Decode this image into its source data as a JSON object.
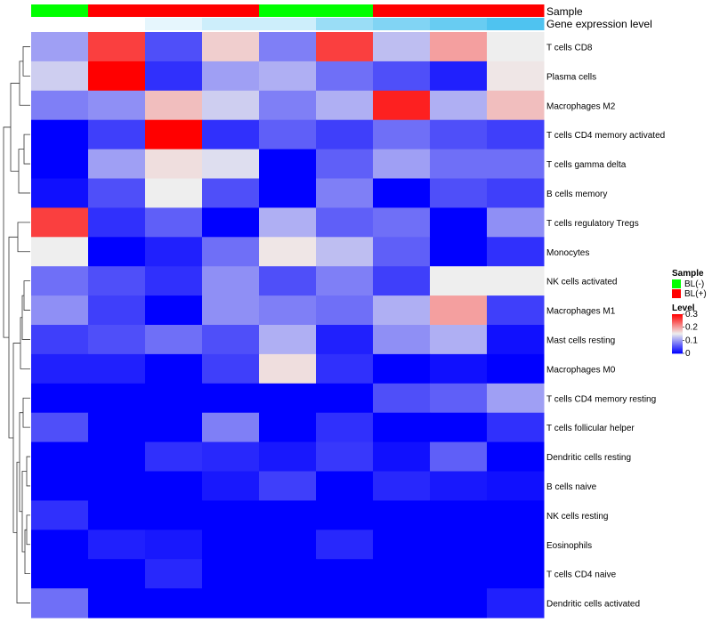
{
  "chart_data": {
    "type": "heatmap",
    "title": "",
    "annotation_labels": [
      "Sample",
      "Gene expression level"
    ],
    "columns": 9,
    "sample_annotation": [
      "BL(-)",
      "BL(+)",
      "BL(+)",
      "BL(+)",
      "BL(-)",
      "BL(-)",
      "BL(+)",
      "BL(+)",
      "BL(+)"
    ],
    "expression_annotation": [
      0.0,
      0.0,
      0.01,
      0.02,
      0.02,
      0.04,
      0.05,
      0.06,
      0.07
    ],
    "rows": [
      "T cells CD8",
      "Plasma cells",
      "Macrophages M2",
      "T cells CD4 memory activated",
      "T cells gamma delta",
      "B cells memory",
      "T cells regulatory  Tregs",
      "Monocytes",
      "NK cells activated",
      "Macrophages M1",
      "Mast cells resting",
      "Macrophages M0",
      "T cells CD4 memory resting",
      "T cells follicular helper",
      "Dendritic cells resting",
      "B cells naive",
      "NK cells resting",
      "Eosinophils",
      "T cells CD4 naive",
      "Dendritic cells activated"
    ],
    "values": [
      [
        0.1,
        0.26,
        0.05,
        0.17,
        0.08,
        0.26,
        0.12,
        0.2,
        0.15
      ],
      [
        0.13,
        0.3,
        0.03,
        0.1,
        0.11,
        0.07,
        0.05,
        0.02,
        0.155
      ],
      [
        0.08,
        0.09,
        0.18,
        0.13,
        0.08,
        0.11,
        0.28,
        0.11,
        0.18
      ],
      [
        0.0,
        0.04,
        0.3,
        0.03,
        0.06,
        0.04,
        0.07,
        0.05,
        0.04
      ],
      [
        0.0,
        0.1,
        0.16,
        0.14,
        0.0,
        0.06,
        0.1,
        0.07,
        0.07
      ],
      [
        0.01,
        0.05,
        0.15,
        0.05,
        0.0,
        0.08,
        0.0,
        0.05,
        0.04
      ],
      [
        0.26,
        0.03,
        0.06,
        0.0,
        0.11,
        0.06,
        0.07,
        0.0,
        0.09
      ],
      [
        0.15,
        0.0,
        0.02,
        0.07,
        0.155,
        0.12,
        0.06,
        0.0,
        0.03
      ],
      [
        0.07,
        0.05,
        0.03,
        0.09,
        0.05,
        0.08,
        0.04,
        0.15,
        0.15
      ],
      [
        0.09,
        0.04,
        0.0,
        0.09,
        0.08,
        0.07,
        0.11,
        0.2,
        0.04
      ],
      [
        0.04,
        0.05,
        0.07,
        0.05,
        0.11,
        0.02,
        0.09,
        0.11,
        0.01
      ],
      [
        0.02,
        0.02,
        0.0,
        0.04,
        0.16,
        0.03,
        0.0,
        0.01,
        0.0
      ],
      [
        0.0,
        0.0,
        0.0,
        0.0,
        0.0,
        0.0,
        0.05,
        0.06,
        0.1
      ],
      [
        0.05,
        0.0,
        0.0,
        0.08,
        0.0,
        0.03,
        0.0,
        0.0,
        0.03
      ],
      [
        0.0,
        0.0,
        0.03,
        0.025,
        0.015,
        0.035,
        0.01,
        0.06,
        0.0
      ],
      [
        0.0,
        0.0,
        0.0,
        0.015,
        0.04,
        0.0,
        0.025,
        0.015,
        0.01
      ],
      [
        0.03,
        0.0,
        0.0,
        0.0,
        0.0,
        0.0,
        0.0,
        0.0,
        0.0
      ],
      [
        0.0,
        0.02,
        0.015,
        0.0,
        0.0,
        0.025,
        0.0,
        0.0,
        0.0
      ],
      [
        0.0,
        0.0,
        0.025,
        0.0,
        0.0,
        0.0,
        0.0,
        0.0,
        0.0
      ],
      [
        0.07,
        0.0,
        0.0,
        0.0,
        0.0,
        0.0,
        0.0,
        0.0,
        0.02
      ]
    ],
    "legend": {
      "sample": {
        "title": "Sample",
        "entries": [
          {
            "label": "BL(-)",
            "color": "#00ff00"
          },
          {
            "label": "BL(+)",
            "color": "#ff0000"
          }
        ]
      },
      "level": {
        "title": "Level",
        "range": [
          0,
          0.3
        ],
        "ticks": [
          {
            "value": 0.3,
            "label": "0.3"
          },
          {
            "value": 0.2,
            "label": "0.2"
          },
          {
            "value": 0.1,
            "label": "0.1"
          },
          {
            "value": 0.0,
            "label": "0"
          }
        ]
      },
      "placement": "right"
    },
    "color_scale": {
      "low": "#0000ff",
      "mid": "#eeeeee",
      "high": "#ff0000",
      "mid_value": 0.15
    },
    "expression_color_scale": {
      "low": "#ffffff",
      "high": "#4fc3f0"
    },
    "row_dendrogram": true,
    "grid": false
  }
}
